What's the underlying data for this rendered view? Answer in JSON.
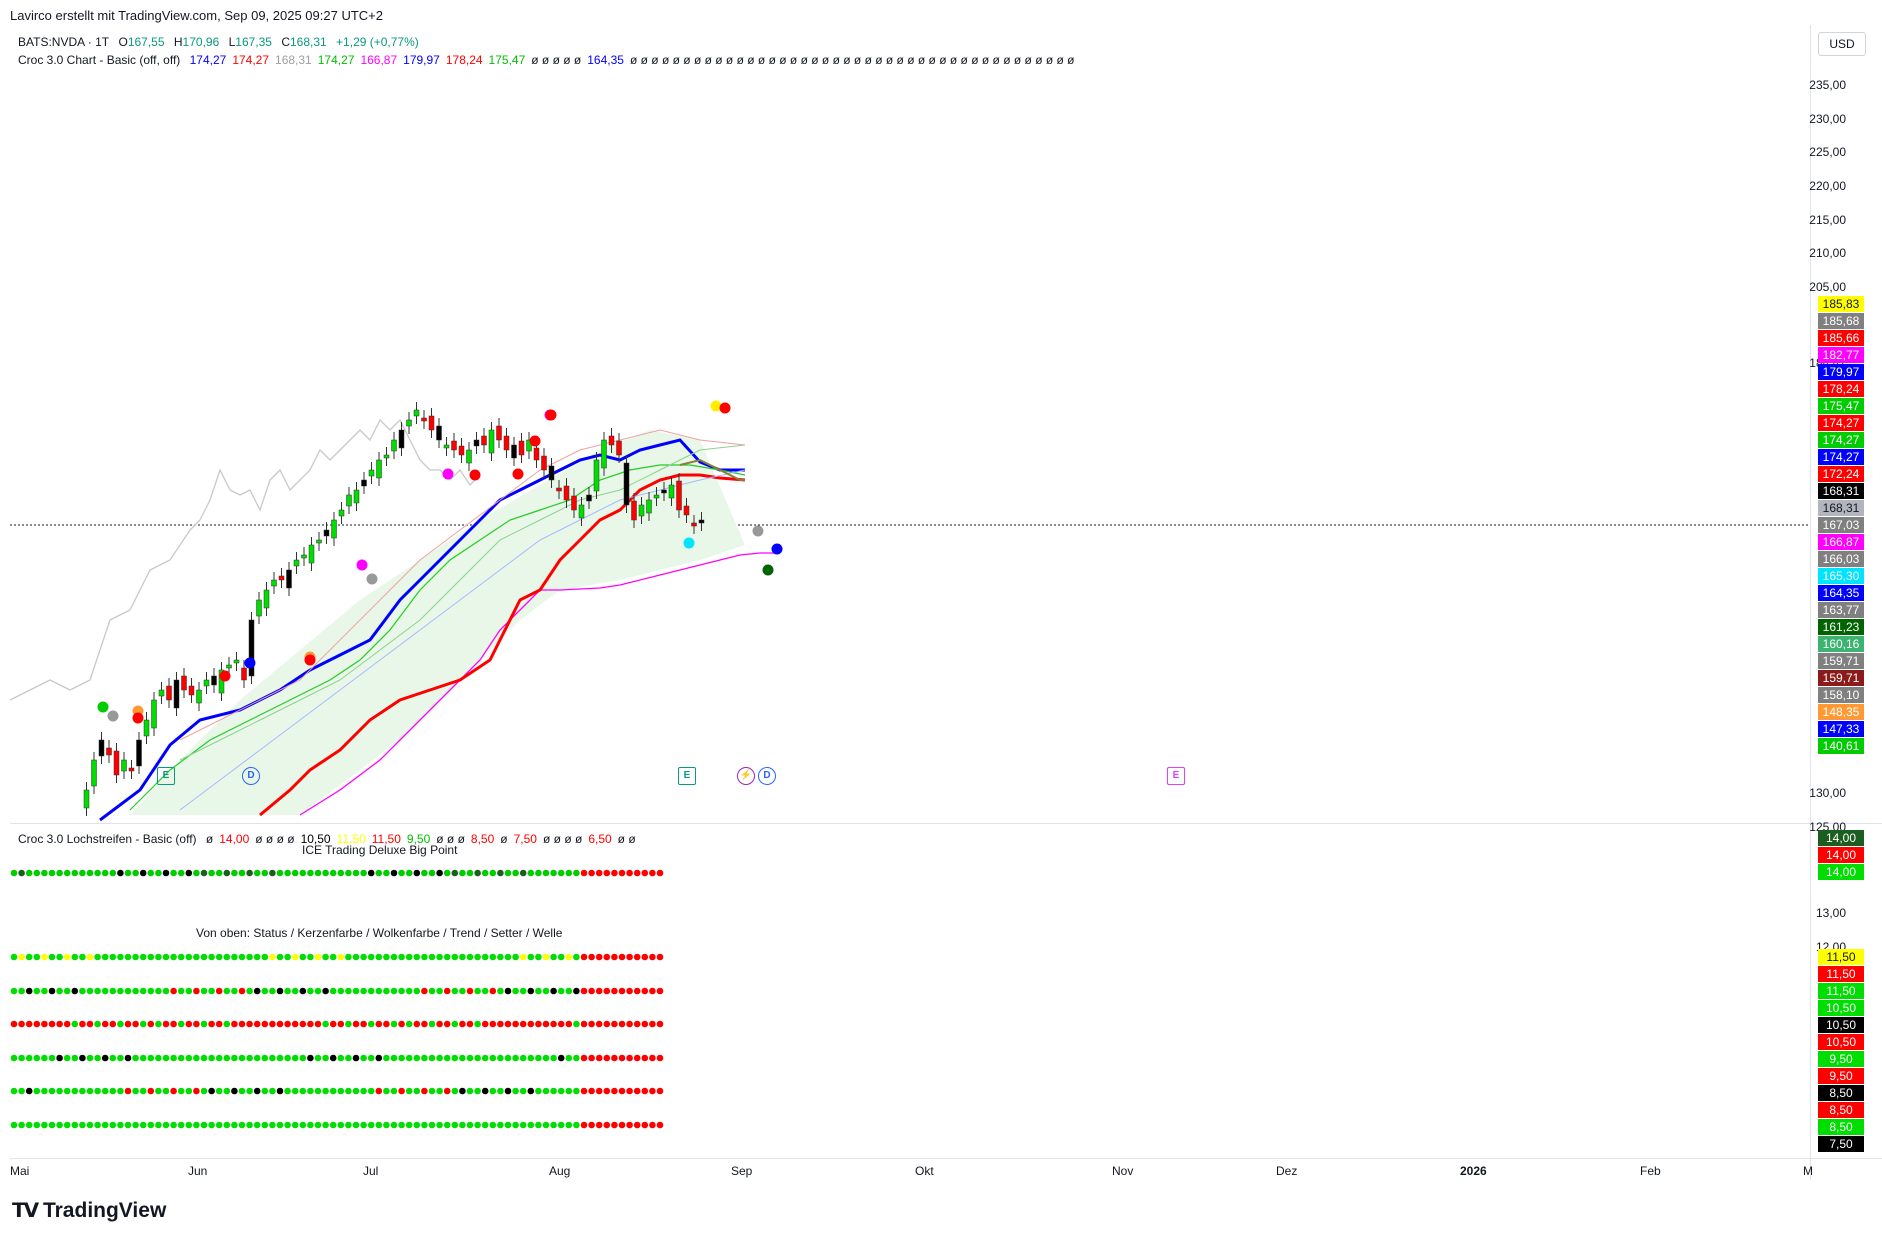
{
  "header": {
    "caption": "Lavirco erstellt mit TradingView.com, Sep 09, 2025 09:27 UTC+2"
  },
  "symbol": {
    "name": "BATS:NVDA · 1T",
    "open_label": "O",
    "open": "167,55",
    "high_label": "H",
    "high": "170,96",
    "low_label": "L",
    "low": "167,35",
    "close_label": "C",
    "close": "168,31",
    "change": "+1,29 (+0,77%)"
  },
  "indicator1": {
    "name": "Croc 3.0 Chart - Basic (off, off)",
    "values": [
      {
        "text": "174,27",
        "color": "#0000ff"
      },
      {
        "text": "174,27",
        "color": "#ff0000"
      },
      {
        "text": "168,31",
        "color": "#9e9e9e"
      },
      {
        "text": "174,27",
        "color": "#00c000"
      },
      {
        "text": "166,87",
        "color": "#ff00ff"
      },
      {
        "text": "179,97",
        "color": "#0000ff"
      },
      {
        "text": "178,24",
        "color": "#ff0000"
      },
      {
        "text": "175,47",
        "color": "#00c000"
      },
      {
        "text": "ø ø ø ø ø",
        "color": "#131722"
      },
      {
        "text": "164,35",
        "color": "#0000ff"
      },
      {
        "text": "ø ø ø ø ø ø ø ø ø ø ø ø ø ø ø ø ø ø ø ø ø ø ø ø ø ø ø ø ø ø ø ø ø ø ø ø ø ø ø ø ø ø",
        "color": "#131722"
      }
    ]
  },
  "indicator2": {
    "name": "Croc 3.0 Lochstreifen - Basic (off)",
    "values": [
      {
        "text": "ø",
        "color": "#131722"
      },
      {
        "text": "14,00",
        "color": "#ff0000"
      },
      {
        "text": "ø ø ø ø",
        "color": "#131722"
      },
      {
        "text": "10,50",
        "color": "#000000"
      },
      {
        "text": "11,50",
        "color": "#ffff00"
      },
      {
        "text": "11,50",
        "color": "#ff0000"
      },
      {
        "text": "9,50",
        "color": "#00c000"
      },
      {
        "text": "ø ø ø",
        "color": "#131722"
      },
      {
        "text": "8,50",
        "color": "#ff0000"
      },
      {
        "text": "ø",
        "color": "#131722"
      },
      {
        "text": "7,50",
        "color": "#ff0000"
      },
      {
        "text": "ø ø ø ø",
        "color": "#131722"
      },
      {
        "text": "6,50",
        "color": "#ff0000"
      },
      {
        "text": "ø ø",
        "color": "#131722"
      }
    ],
    "title_big_point": "ICE Trading Deluxe Big Point",
    "caption_rows": "Von oben: Status / Kerzenfarbe / Wolkenfarbe / Trend / Setter / Welle"
  },
  "currency_button": "USD",
  "price_axis": [
    "235,00",
    "230,00",
    "225,00",
    "220,00",
    "215,00",
    "210,00",
    "205,00",
    "184,47",
    "130,00",
    "125,00"
  ],
  "lower_axis": [
    "13,00",
    "12,00"
  ],
  "price_badges": [
    {
      "text": "185,83",
      "bg": "#ffff00",
      "fg": "#131722"
    },
    {
      "text": "185,68",
      "bg": "#808080",
      "fg": "#ffffff"
    },
    {
      "text": "185,66",
      "bg": "#ff0000",
      "fg": "#ffffff"
    },
    {
      "text": "182,77",
      "bg": "#ff00ff",
      "fg": "#ffffff"
    },
    {
      "text": "179,97",
      "bg": "#0000ff",
      "fg": "#ffffff"
    },
    {
      "text": "178,24",
      "bg": "#ff0000",
      "fg": "#ffffff"
    },
    {
      "text": "175,47",
      "bg": "#00cc00",
      "fg": "#ffffff"
    },
    {
      "text": "174,27",
      "bg": "#ff0000",
      "fg": "#ffffff"
    },
    {
      "text": "174,27",
      "bg": "#00cc00",
      "fg": "#ffffff"
    },
    {
      "text": "174,27",
      "bg": "#0000ff",
      "fg": "#ffffff"
    },
    {
      "text": "172,24",
      "bg": "#ff0000",
      "fg": "#ffffff"
    },
    {
      "text": "168,31",
      "bg": "#000000",
      "fg": "#ffffff"
    },
    {
      "text": "168,31",
      "bg": "#b2b5be",
      "fg": "#131722"
    },
    {
      "text": "167,03",
      "bg": "#808080",
      "fg": "#ffffff"
    },
    {
      "text": "166,87",
      "bg": "#ff00ff",
      "fg": "#ffffff"
    },
    {
      "text": "166,03",
      "bg": "#808080",
      "fg": "#ffffff"
    },
    {
      "text": "165,30",
      "bg": "#00e5ff",
      "fg": "#ffffff"
    },
    {
      "text": "164,35",
      "bg": "#0000ff",
      "fg": "#ffffff"
    },
    {
      "text": "163,77",
      "bg": "#808080",
      "fg": "#ffffff"
    },
    {
      "text": "161,23",
      "bg": "#006400",
      "fg": "#ffffff"
    },
    {
      "text": "160,16",
      "bg": "#3cb371",
      "fg": "#ffffff"
    },
    {
      "text": "159,71",
      "bg": "#808080",
      "fg": "#ffffff"
    },
    {
      "text": "159,71",
      "bg": "#8b1a1a",
      "fg": "#ffffff"
    },
    {
      "text": "158,10",
      "bg": "#808080",
      "fg": "#ffffff"
    },
    {
      "text": "148,35",
      "bg": "#ff9933",
      "fg": "#ffffff"
    },
    {
      "text": "147,33",
      "bg": "#0000ff",
      "fg": "#ffffff"
    },
    {
      "text": "140,61",
      "bg": "#00cc00",
      "fg": "#ffffff"
    }
  ],
  "lower_badges": [
    {
      "text": "14,00",
      "bg": "#1b5e20",
      "fg": "#ffffff"
    },
    {
      "text": "14,00",
      "bg": "#ff0000",
      "fg": "#ffffff"
    },
    {
      "text": "14,00",
      "bg": "#00dd00",
      "fg": "#ffffff"
    },
    {
      "text": "11,50",
      "bg": "#ffff00",
      "fg": "#131722"
    },
    {
      "text": "11,50",
      "bg": "#ff0000",
      "fg": "#ffffff"
    },
    {
      "text": "11,50",
      "bg": "#00dd00",
      "fg": "#ffffff"
    },
    {
      "text": "10,50",
      "bg": "#00dd00",
      "fg": "#ffffff"
    },
    {
      "text": "10,50",
      "bg": "#000000",
      "fg": "#ffffff"
    },
    {
      "text": "10,50",
      "bg": "#ff0000",
      "fg": "#ffffff"
    },
    {
      "text": "9,50",
      "bg": "#00dd00",
      "fg": "#ffffff"
    },
    {
      "text": "9,50",
      "bg": "#ff0000",
      "fg": "#ffffff"
    },
    {
      "text": "8,50",
      "bg": "#000000",
      "fg": "#ffffff"
    },
    {
      "text": "8,50",
      "bg": "#ff0000",
      "fg": "#ffffff"
    },
    {
      "text": "8,50",
      "bg": "#00dd00",
      "fg": "#ffffff"
    },
    {
      "text": "7,50",
      "bg": "#000000",
      "fg": "#ffffff"
    }
  ],
  "time_axis": [
    "Mai",
    "Jun",
    "Jul",
    "Aug",
    "Sep",
    "Okt",
    "Nov",
    "Dez",
    "2026",
    "Feb",
    "M"
  ],
  "events": [
    "E",
    "D",
    "E",
    "D",
    "E"
  ],
  "brand": "TradingView",
  "colors": {
    "up": "#00dd00",
    "down": "#ff0000",
    "baseline_blue": "#0000ff",
    "conversion_red": "#ff0000",
    "lagging": "#c0c0c0",
    "cloud": "#e8f7e8",
    "span_b": "#ff00ff"
  }
}
